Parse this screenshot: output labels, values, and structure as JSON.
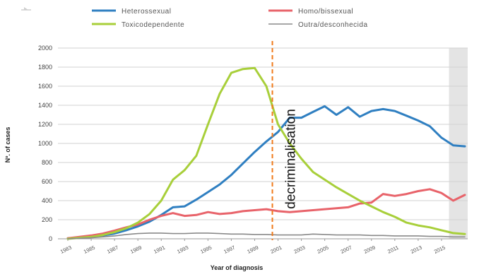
{
  "chart_data": {
    "type": "line",
    "title": "",
    "xlabel": "Year of diagnosis",
    "ylabel": "Nº. of cases",
    "ylim": [
      0,
      2000
    ],
    "yticks": [
      0,
      200,
      400,
      600,
      800,
      1000,
      1200,
      1400,
      1600,
      1800,
      2000
    ],
    "x": [
      1983,
      1984,
      1985,
      1986,
      1987,
      1988,
      1989,
      1990,
      1991,
      1992,
      1993,
      1994,
      1995,
      1996,
      1997,
      1998,
      1999,
      2000,
      2001,
      2002,
      2003,
      2004,
      2005,
      2006,
      2007,
      2008,
      2009,
      2010,
      2011,
      2012,
      2013,
      2014,
      2015,
      2016,
      2017
    ],
    "xtick_labels": [
      "1983",
      "1985",
      "1987",
      "1989",
      "1991",
      "1993",
      "1995",
      "1997",
      "1999",
      "2001",
      "2003",
      "2005",
      "2007",
      "2009",
      "2011",
      "2013",
      "2015"
    ],
    "grid": true,
    "legend_position": "top",
    "shaded_region": [
      2016,
      2017
    ],
    "annotation": {
      "label": "decriminalisation",
      "x": 2001,
      "style": "dashed",
      "color": "#f07a1a"
    },
    "series": [
      {
        "name": "Heterossexual",
        "color": "#2f7fc1",
        "values": [
          5,
          10,
          20,
          35,
          55,
          90,
          130,
          180,
          250,
          330,
          340,
          410,
          490,
          570,
          670,
          790,
          910,
          1020,
          1120,
          1270,
          1270,
          1330,
          1390,
          1300,
          1380,
          1280,
          1340,
          1360,
          1340,
          1290,
          1240,
          1180,
          1060,
          980,
          970
        ]
      },
      {
        "name": "Homo/bissexual",
        "color": "#e8636a",
        "values": [
          5,
          20,
          35,
          55,
          85,
          120,
          150,
          200,
          240,
          270,
          240,
          250,
          280,
          260,
          270,
          290,
          300,
          310,
          290,
          280,
          290,
          300,
          310,
          320,
          330,
          370,
          380,
          470,
          450,
          470,
          500,
          520,
          480,
          400,
          460
        ]
      },
      {
        "name": "Toxicodependente",
        "color": "#a8cf3a",
        "values": [
          0,
          10,
          20,
          40,
          70,
          110,
          170,
          260,
          400,
          620,
          720,
          870,
          1200,
          1520,
          1740,
          1780,
          1790,
          1600,
          1200,
          1000,
          840,
          700,
          620,
          540,
          470,
          400,
          340,
          280,
          230,
          170,
          140,
          120,
          90,
          60,
          50
        ]
      },
      {
        "name": "Outra/desconhecida",
        "color": "#8a8a8a",
        "values": [
          0,
          5,
          10,
          20,
          30,
          45,
          55,
          60,
          60,
          55,
          55,
          60,
          60,
          55,
          50,
          50,
          45,
          45,
          40,
          40,
          40,
          50,
          45,
          40,
          40,
          40,
          35,
          35,
          30,
          30,
          30,
          25,
          25,
          20,
          20
        ]
      }
    ]
  }
}
